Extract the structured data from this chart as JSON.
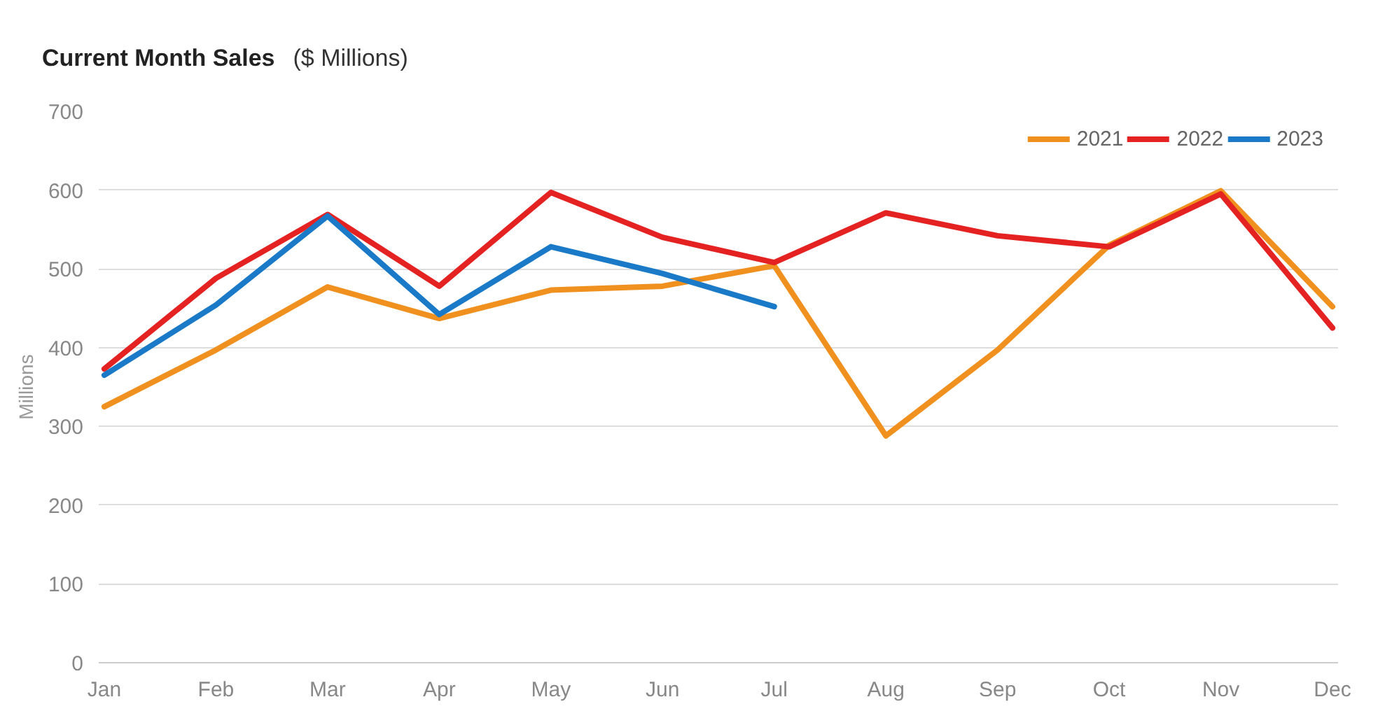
{
  "chart_data": {
    "type": "line",
    "title": "Current Month Sales",
    "subtitle": "($ Millions)",
    "ylabel": "Millions",
    "categories": [
      "Jan",
      "Feb",
      "Mar",
      "Apr",
      "May",
      "Jun",
      "Jul",
      "Aug",
      "Sep",
      "Oct",
      "Nov",
      "Dec"
    ],
    "series": [
      {
        "name": "2021",
        "color": "#f0901e",
        "values": [
          325,
          397,
          477,
          437,
          473,
          478,
          504,
          288,
          397,
          530,
          599,
          452
        ]
      },
      {
        "name": "2022",
        "color": "#e52222",
        "values": [
          373,
          488,
          569,
          478,
          597,
          540,
          508,
          571,
          542,
          528,
          595,
          425
        ]
      },
      {
        "name": "2023",
        "color": "#1a7ac8",
        "values": [
          365,
          454,
          567,
          442,
          528,
          494,
          452,
          null,
          null,
          null,
          null,
          null
        ]
      }
    ],
    "ylim": [
      0,
      700
    ],
    "yticks": [
      0,
      100,
      200,
      300,
      400,
      500,
      600,
      700
    ],
    "grid": "y",
    "legend": "top right"
  }
}
